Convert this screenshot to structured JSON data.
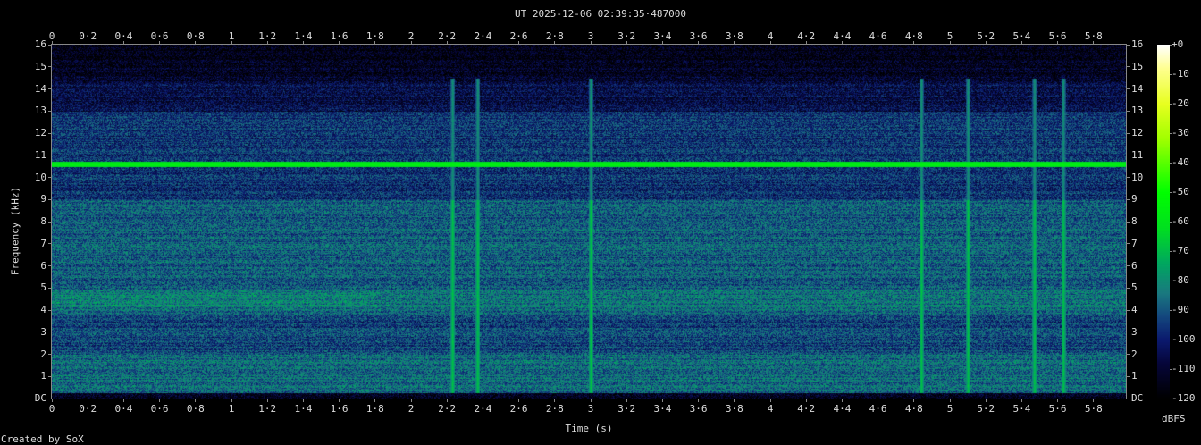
{
  "chart_data": {
    "type": "heatmap",
    "title": "UT 2025-12-06 02:39:35·487000",
    "xlabel": "Time (s)",
    "ylabel": "Frequency (kHz)",
    "xlim": [
      0,
      5.98
    ],
    "ylim": [
      0,
      16
    ],
    "x_ticks": [
      "0",
      "0·2",
      "0·4",
      "0·6",
      "0·8",
      "1",
      "1·2",
      "1·4",
      "1·6",
      "1·8",
      "2",
      "2·2",
      "2·4",
      "2·6",
      "2·8",
      "3",
      "3·2",
      "3·4",
      "3·6",
      "3·8",
      "4",
      "4·2",
      "4·4",
      "4·6",
      "4·8",
      "5",
      "5·2",
      "5·4",
      "5·6",
      "5·8"
    ],
    "y_ticks": [
      "DC",
      "1",
      "2",
      "3",
      "4",
      "5",
      "6",
      "7",
      "8",
      "9",
      "10",
      "11",
      "12",
      "13",
      "14",
      "15",
      "16"
    ],
    "colorbar": {
      "label": "dBFS",
      "range": [
        -120,
        0
      ],
      "ticks": [
        "+0",
        "-10",
        "-20",
        "-30",
        "-40",
        "-50",
        "-60",
        "-70",
        "-80",
        "-90",
        "-100",
        "-110",
        "-120"
      ],
      "colors": [
        "#000000",
        "#06063a",
        "#0b1a6e",
        "#14487e",
        "#1a7a80",
        "#00a860",
        "#00e020",
        "#00ff00",
        "#a0ff00",
        "#e8ff20",
        "#ffff90",
        "#ffffff"
      ]
    },
    "features": {
      "continuous_tone_khz": 10.6,
      "transient_times_s": [
        2.23,
        2.37,
        3.0,
        4.84,
        5.1,
        5.47,
        5.63
      ]
    }
  },
  "footer": {
    "credit": "Created by SoX"
  }
}
